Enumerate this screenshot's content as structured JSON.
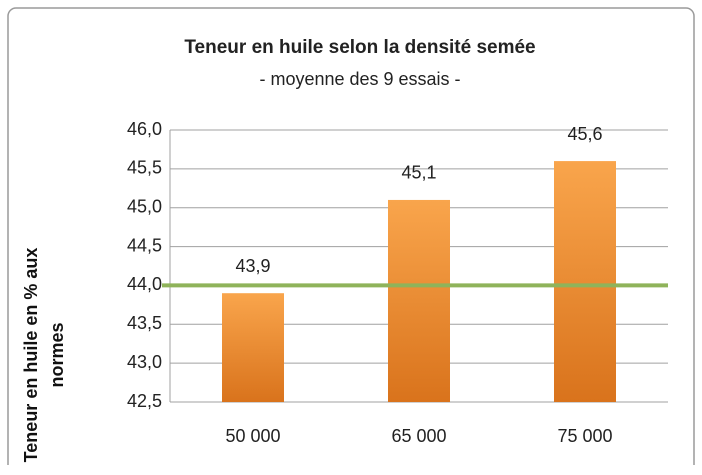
{
  "chart_data": {
    "type": "bar",
    "title": "Teneur en huile selon la densité semée",
    "subtitle": "- moyenne des 9 essais -",
    "ylabel": "Teneur en huile en % aux normes",
    "categories": [
      "50 000",
      "65 000",
      "75 000"
    ],
    "values": [
      43.9,
      45.1,
      45.6
    ],
    "value_labels": [
      "43,9",
      "45,1",
      "45,6"
    ],
    "color": "#f28f2c",
    "reference_line": {
      "value": 44,
      "color": "#8fb35a"
    },
    "ylim": [
      42.5,
      46
    ],
    "yticks": [
      {
        "value": 42.5,
        "label": "42,5"
      },
      {
        "value": 43,
        "label": "43,0"
      },
      {
        "value": 43.5,
        "label": "43,5"
      },
      {
        "value": 44,
        "label": "44,0"
      },
      {
        "value": 44.5,
        "label": "44,5"
      },
      {
        "value": 45,
        "label": "45,0"
      },
      {
        "value": 45.5,
        "label": "45,5"
      },
      {
        "value": 46,
        "label": "46,0"
      }
    ],
    "grid": true
  }
}
